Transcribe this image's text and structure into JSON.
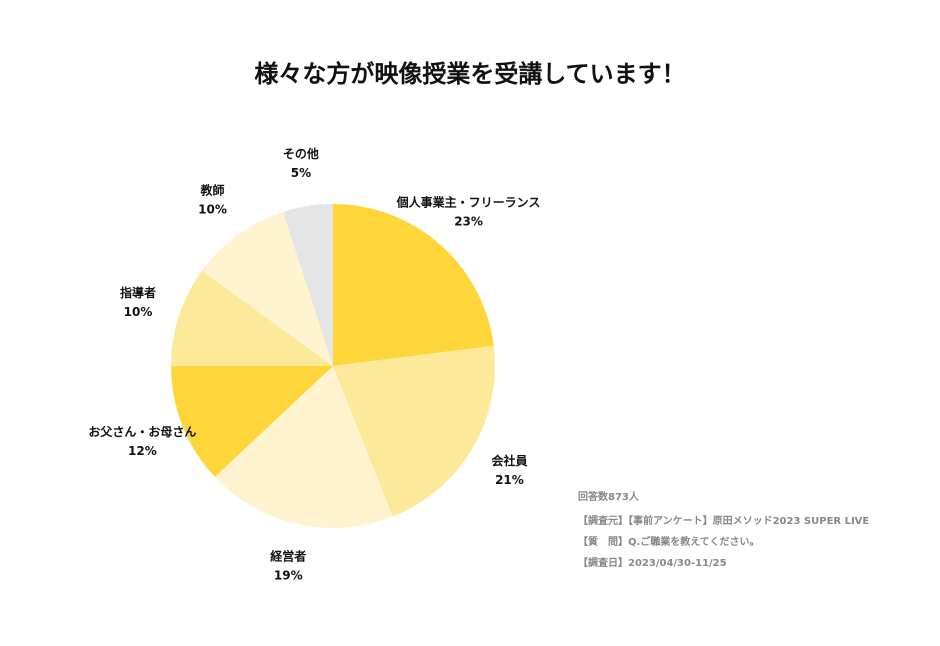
{
  "chart_data": {
    "type": "pie",
    "title": "様々な方が映像授業を受講しています！",
    "categories": [
      "個人事業主・フリーランス",
      "会社員",
      "経営者",
      "お父さん・お母さん",
      "指導者",
      "教師",
      "その他"
    ],
    "values": [
      23,
      21,
      19,
      12,
      10,
      10,
      5
    ],
    "value_labels": [
      "23%",
      "21%",
      "19%",
      "12%",
      "10%",
      "10%",
      "5%"
    ],
    "colors": [
      "#fed63a",
      "#fde99a",
      "#fff4cf",
      "#fed63a",
      "#fde99a",
      "#fff4cf",
      "#e5e5e5"
    ],
    "annotations": [
      "回答数873人",
      "【調査元】【事前アンケート】原田メソッド2023 SUPER LIVE",
      "【質　問】Q.ご職業を教えてください。",
      "【調査日】2023/04/30-11/25"
    ]
  }
}
